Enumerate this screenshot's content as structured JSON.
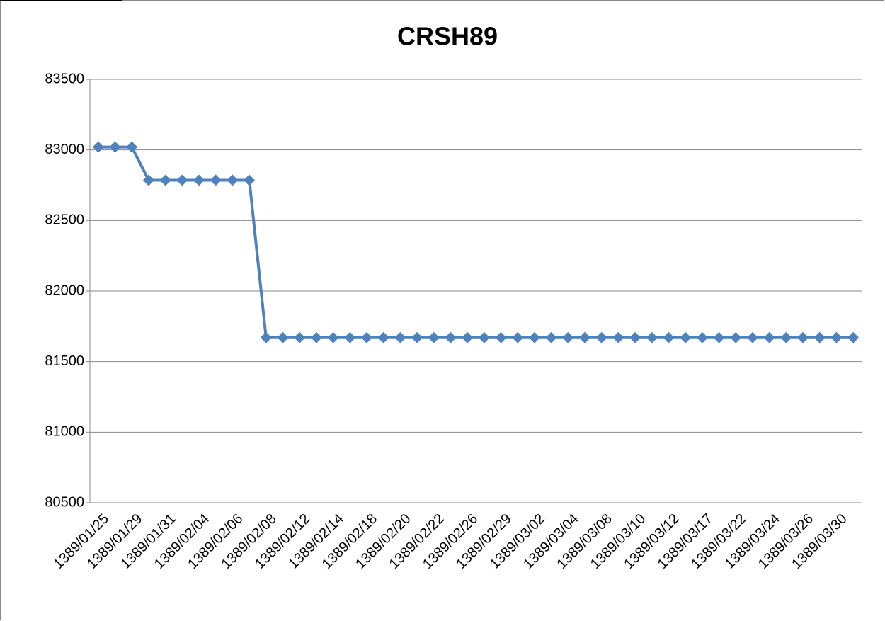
{
  "chart_data": {
    "type": "line",
    "title": "CRSH89",
    "categories": [
      "1389/01/25",
      null,
      "1389/01/29",
      null,
      "1389/01/31",
      null,
      "1389/02/04",
      null,
      "1389/02/06",
      null,
      "1389/02/08",
      null,
      "1389/02/12",
      null,
      "1389/02/14",
      null,
      "1389/02/18",
      null,
      "1389/02/20",
      null,
      "1389/02/22",
      null,
      "1389/02/26",
      null,
      "1389/02/29",
      null,
      "1389/03/02",
      null,
      "1389/03/04",
      null,
      "1389/03/08",
      null,
      "1389/03/10",
      null,
      "1389/03/12",
      null,
      "1389/03/17",
      null,
      "1389/03/22",
      null,
      "1389/03/24",
      null,
      "1389/03/26",
      null,
      "1389/03/30",
      null
    ],
    "series": [
      {
        "name": "CRSH89",
        "color": "#4f81bd",
        "values": [
          83020,
          83020,
          83020,
          82785,
          82785,
          82785,
          82785,
          82785,
          82785,
          82785,
          81670,
          81670,
          81670,
          81670,
          81670,
          81670,
          81670,
          81670,
          81670,
          81670,
          81670,
          81670,
          81670,
          81670,
          81670,
          81670,
          81670,
          81670,
          81670,
          81670,
          81670,
          81670,
          81670,
          81670,
          81670,
          81670,
          81670,
          81670,
          81670,
          81670,
          81670,
          81670,
          81670,
          81670,
          81670,
          81670
        ]
      }
    ],
    "ylim": [
      80500,
      83500
    ],
    "yticks": [
      80500,
      81000,
      81500,
      82000,
      82500,
      83000,
      83500
    ],
    "grid": true
  }
}
